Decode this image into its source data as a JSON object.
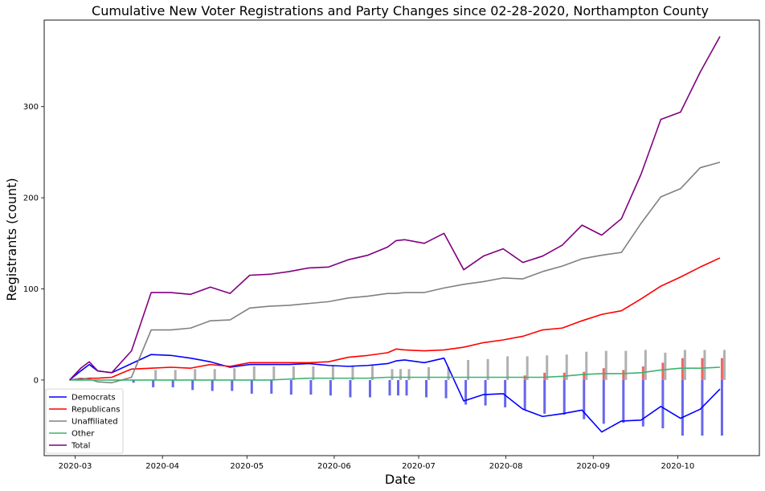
{
  "chart_data": {
    "type": "line",
    "title": "Cumulative New Voter Registrations and Party Changes since 02-28-2020, Northampton County",
    "xlabel": "Date",
    "ylabel": "Registrants (count)",
    "xlim": [
      "2020-02-19",
      "2020-10-30"
    ],
    "ylim": [
      -83,
      395
    ],
    "xticks": [
      "2020-03-01",
      "2020-04-01",
      "2020-05-01",
      "2020-06-01",
      "2020-07-01",
      "2020-08-01",
      "2020-09-01",
      "2020-10-01"
    ],
    "xtick_labels": [
      "2020-03",
      "2020-04",
      "2020-05",
      "2020-06",
      "2020-07",
      "2020-08",
      "2020-09",
      "2020-10"
    ],
    "yticks": [
      0,
      100,
      200,
      300
    ],
    "grid": false,
    "legend_position": "lower-left",
    "x": [
      "2020-02-28",
      "2020-03-03",
      "2020-03-06",
      "2020-03-09",
      "2020-03-14",
      "2020-03-21",
      "2020-03-28",
      "2020-04-04",
      "2020-04-11",
      "2020-04-18",
      "2020-04-25",
      "2020-05-02",
      "2020-05-09",
      "2020-05-16",
      "2020-05-23",
      "2020-05-30",
      "2020-06-06",
      "2020-06-13",
      "2020-06-20",
      "2020-06-23",
      "2020-06-26",
      "2020-07-03",
      "2020-07-10",
      "2020-07-17",
      "2020-07-24",
      "2020-07-31",
      "2020-08-07",
      "2020-08-14",
      "2020-08-21",
      "2020-08-28",
      "2020-09-04",
      "2020-09-11",
      "2020-09-18",
      "2020-09-25",
      "2020-10-02",
      "2020-10-09",
      "2020-10-16"
    ],
    "series": [
      {
        "name": "Democrats",
        "color": "#0000ff",
        "values": [
          0,
          10,
          17,
          10,
          8,
          18,
          28,
          27,
          24,
          20,
          14,
          17,
          17,
          17,
          18,
          16,
          15,
          16,
          18,
          21,
          22,
          19,
          24,
          -23,
          -16,
          -15,
          -32,
          -40,
          -37,
          -33,
          -57,
          -45,
          -44,
          -29,
          -42,
          -32,
          -10
        ]
      },
      {
        "name": "Republicans",
        "color": "#ff0000",
        "values": [
          0,
          1,
          2,
          2,
          3,
          12,
          13,
          14,
          13,
          17,
          15,
          19,
          19,
          19,
          19,
          20,
          25,
          27,
          30,
          34,
          33,
          32,
          33,
          36,
          41,
          44,
          48,
          55,
          57,
          65,
          72,
          76,
          89,
          103,
          113,
          124,
          134
        ]
      },
      {
        "name": "Unaffiliated",
        "color": "#808080",
        "values": [
          0,
          2,
          1,
          -2,
          -3,
          3,
          55,
          55,
          57,
          65,
          66,
          79,
          81,
          82,
          84,
          86,
          90,
          92,
          95,
          95,
          96,
          96,
          101,
          105,
          108,
          112,
          111,
          119,
          125,
          133,
          137,
          140,
          172,
          201,
          210,
          233,
          239
        ]
      },
      {
        "name": "Other",
        "color": "#3cb371",
        "values": [
          0,
          0,
          0,
          0,
          0,
          0,
          0,
          0,
          0,
          0,
          0,
          0,
          0,
          1,
          2,
          2,
          2,
          2,
          3,
          3,
          3,
          3,
          3,
          3,
          3,
          3,
          3,
          3,
          4,
          6,
          7,
          7,
          8,
          11,
          13,
          13,
          14
        ]
      },
      {
        "name": "Total",
        "color": "#800080",
        "values": [
          0,
          13,
          20,
          10,
          8,
          32,
          96,
          96,
          94,
          102,
          95,
          115,
          116,
          119,
          123,
          124,
          132,
          137,
          146,
          153,
          154,
          150,
          161,
          121,
          136,
          144,
          129,
          136,
          148,
          170,
          159,
          177,
          226,
          286,
          294,
          338,
          377
        ]
      }
    ],
    "bars": [
      {
        "party": "Democrats",
        "color": "#6666ee",
        "points": [
          [
            "2020-03-21",
            -3
          ],
          [
            "2020-03-28",
            -8
          ],
          [
            "2020-04-04",
            -8
          ],
          [
            "2020-04-11",
            -11
          ],
          [
            "2020-04-18",
            -12
          ],
          [
            "2020-04-25",
            -12
          ],
          [
            "2020-05-02",
            -15
          ],
          [
            "2020-05-09",
            -15
          ],
          [
            "2020-05-16",
            -16
          ],
          [
            "2020-05-23",
            -16
          ],
          [
            "2020-05-30",
            -17
          ],
          [
            "2020-06-06",
            -19
          ],
          [
            "2020-06-13",
            -19
          ],
          [
            "2020-06-20",
            -17
          ],
          [
            "2020-06-23",
            -17
          ],
          [
            "2020-06-26",
            -17
          ],
          [
            "2020-07-03",
            -19
          ],
          [
            "2020-07-10",
            -20
          ],
          [
            "2020-07-17",
            -27
          ],
          [
            "2020-07-24",
            -28
          ],
          [
            "2020-07-31",
            -30
          ],
          [
            "2020-08-07",
            -33
          ],
          [
            "2020-08-14",
            -37
          ],
          [
            "2020-08-21",
            -38
          ],
          [
            "2020-08-28",
            -43
          ],
          [
            "2020-09-04",
            -48
          ],
          [
            "2020-09-11",
            -47
          ],
          [
            "2020-09-18",
            -51
          ],
          [
            "2020-09-25",
            -53
          ],
          [
            "2020-10-02",
            -61
          ],
          [
            "2020-10-09",
            -61
          ],
          [
            "2020-10-16",
            -61
          ]
        ]
      },
      {
        "party": "Republicans",
        "color": "#ee6666",
        "points": [
          [
            "2020-08-07",
            5
          ],
          [
            "2020-08-14",
            8
          ],
          [
            "2020-08-21",
            8
          ],
          [
            "2020-08-28",
            9
          ],
          [
            "2020-09-04",
            13
          ],
          [
            "2020-09-11",
            11
          ],
          [
            "2020-09-18",
            15
          ],
          [
            "2020-09-25",
            19
          ],
          [
            "2020-10-02",
            24
          ],
          [
            "2020-10-09",
            24
          ],
          [
            "2020-10-16",
            24
          ]
        ]
      },
      {
        "party": "Unaffiliated",
        "color": "#b0b0b0",
        "points": [
          [
            "2020-03-28",
            11
          ],
          [
            "2020-04-04",
            11
          ],
          [
            "2020-04-11",
            12
          ],
          [
            "2020-04-18",
            12
          ],
          [
            "2020-04-25",
            13
          ],
          [
            "2020-05-02",
            15
          ],
          [
            "2020-05-09",
            15
          ],
          [
            "2020-05-16",
            15
          ],
          [
            "2020-05-23",
            15
          ],
          [
            "2020-05-30",
            16
          ],
          [
            "2020-06-06",
            16
          ],
          [
            "2020-06-13",
            16
          ],
          [
            "2020-06-20",
            12
          ],
          [
            "2020-06-23",
            12
          ],
          [
            "2020-06-26",
            12
          ],
          [
            "2020-07-03",
            14
          ],
          [
            "2020-07-10",
            14
          ],
          [
            "2020-07-17",
            22
          ],
          [
            "2020-07-24",
            23
          ],
          [
            "2020-07-31",
            26
          ],
          [
            "2020-08-07",
            26
          ],
          [
            "2020-08-14",
            27
          ],
          [
            "2020-08-21",
            28
          ],
          [
            "2020-08-28",
            31
          ],
          [
            "2020-09-04",
            32
          ],
          [
            "2020-09-11",
            32
          ],
          [
            "2020-09-18",
            33
          ],
          [
            "2020-09-25",
            30
          ],
          [
            "2020-10-02",
            33
          ],
          [
            "2020-10-09",
            33
          ],
          [
            "2020-10-16",
            33
          ]
        ]
      }
    ]
  }
}
